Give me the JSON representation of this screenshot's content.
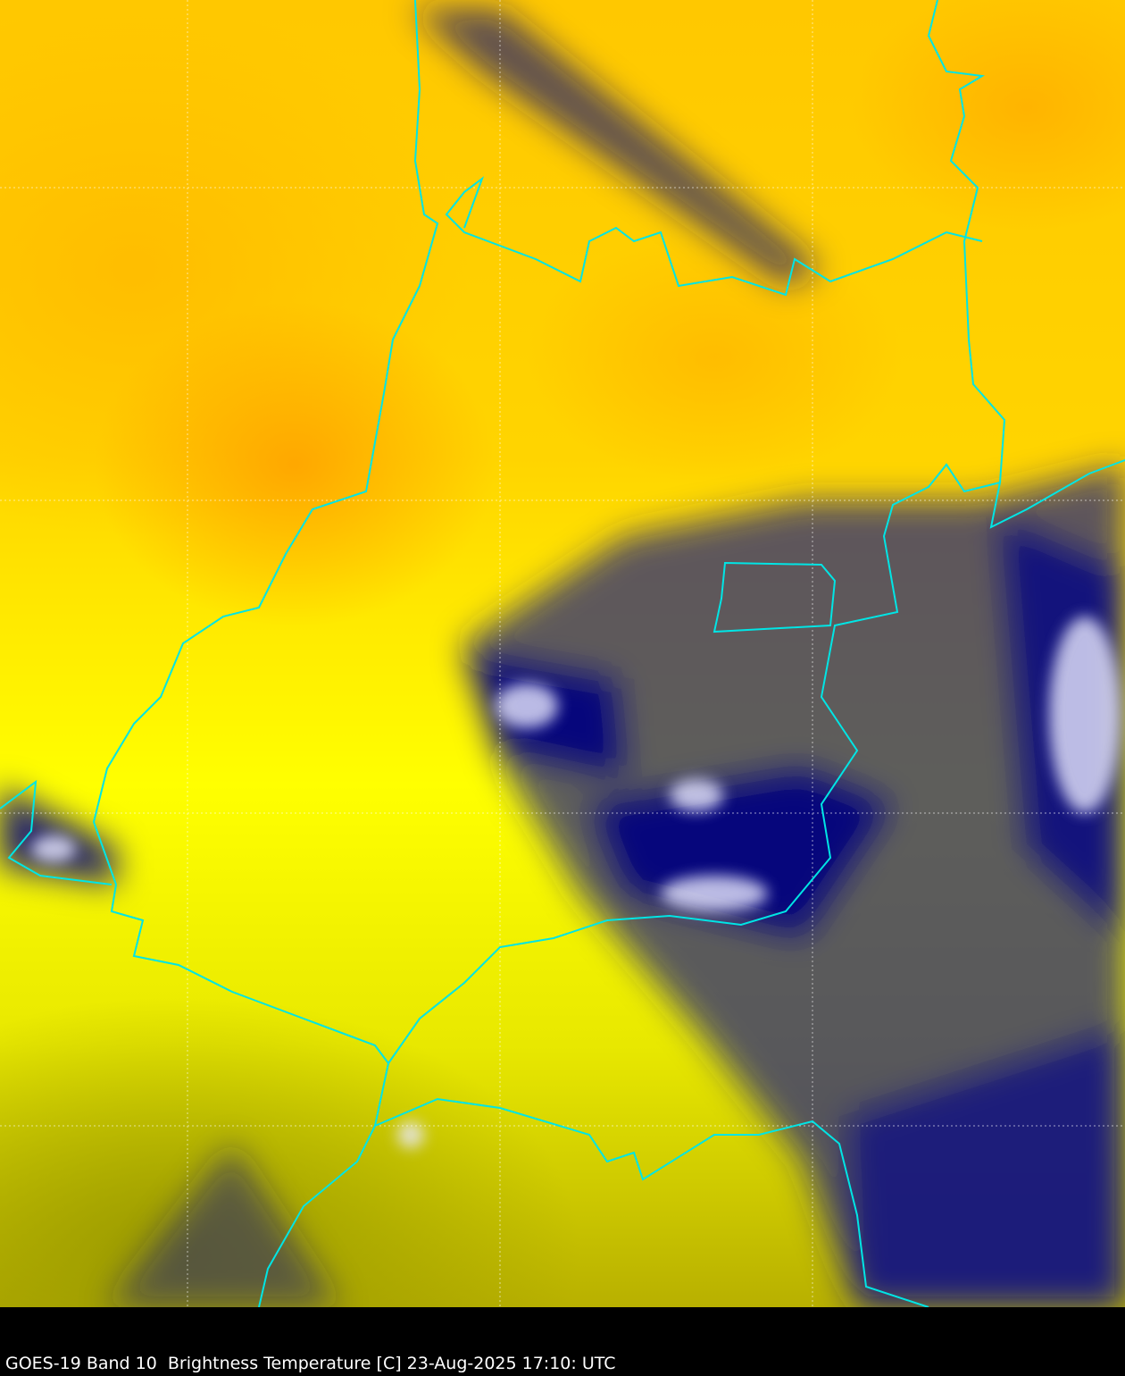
{
  "caption": "GOES-19 Band 10  Brightness Temperature [C] 23-Aug-2025 17:10: UTC",
  "colors": {
    "warm": "#ffc000",
    "mid": "#ffff00",
    "cold": "#000080",
    "coldest": "#ffffff",
    "borders": "#00e5e5",
    "background": "#000000"
  }
}
